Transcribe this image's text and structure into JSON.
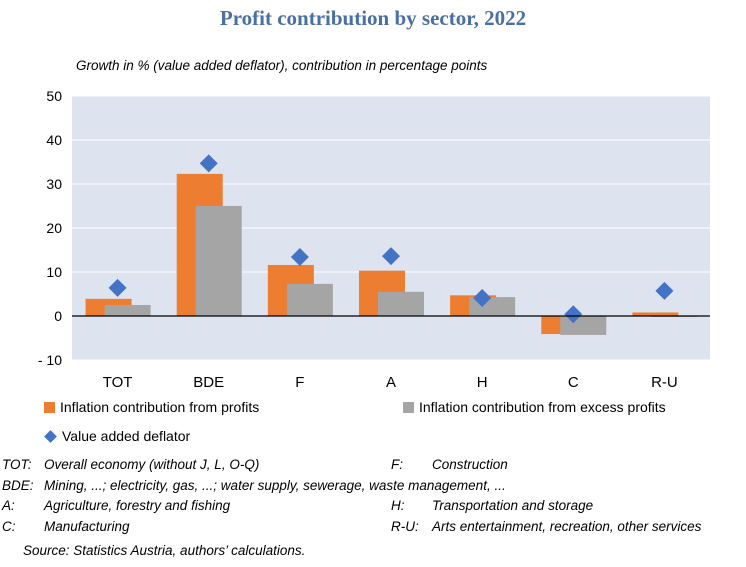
{
  "title": "Profit contribution by sector, 2022",
  "subtitle": "Growth in % (value added deflator), contribution in percentage points",
  "chart_data": {
    "type": "bar",
    "categories": [
      "TOT",
      "BDE",
      "F",
      "A",
      "H",
      "C",
      "R-U"
    ],
    "series": [
      {
        "name": "Inflation contribution from profits",
        "type": "bar",
        "color": "#ed7d31",
        "values": [
          3.9,
          32.3,
          11.6,
          10.3,
          4.7,
          -4.1,
          0.8
        ]
      },
      {
        "name": "Inflation contribution from excess profits",
        "type": "bar",
        "color": "#a5a5a5",
        "values": [
          2.5,
          25.0,
          7.3,
          5.5,
          4.3,
          -4.3,
          -0.2
        ]
      },
      {
        "name": "Value added deflator",
        "type": "scatter",
        "marker": "diamond",
        "color": "#4472c4",
        "values": [
          6.4,
          34.7,
          13.4,
          13.6,
          4.1,
          0.4,
          5.7
        ]
      }
    ],
    "ylim": [
      -10,
      50
    ],
    "yticks": [
      -10,
      0,
      10,
      20,
      30,
      40,
      50
    ],
    "ytick_labels": [
      "- 10",
      "0",
      "10",
      "20",
      "30",
      "40",
      "50"
    ],
    "plot_background": "#dde3ef",
    "grid": true,
    "legend": "bottom"
  },
  "notes": {
    "tot": {
      "code": "TOT:",
      "text": "Overall economy (without J, L, O-Q)"
    },
    "f": {
      "code": "F:",
      "text": "Construction"
    },
    "bde": {
      "code": "BDE:",
      "text": "Mining, ...; electricity, gas, ...; water supply, sewerage, waste management, ..."
    },
    "a": {
      "code": "A:",
      "text": "Agriculture, forestry and fishing"
    },
    "h": {
      "code": "H:",
      "text": "Transportation and storage"
    },
    "c": {
      "code": "C:",
      "text": "Manufacturing"
    },
    "ru": {
      "code": "R-U:",
      "text": "Arts entertainment, recreation, other services"
    },
    "source": "Source: Statistics Austria, authors’ calculations."
  }
}
